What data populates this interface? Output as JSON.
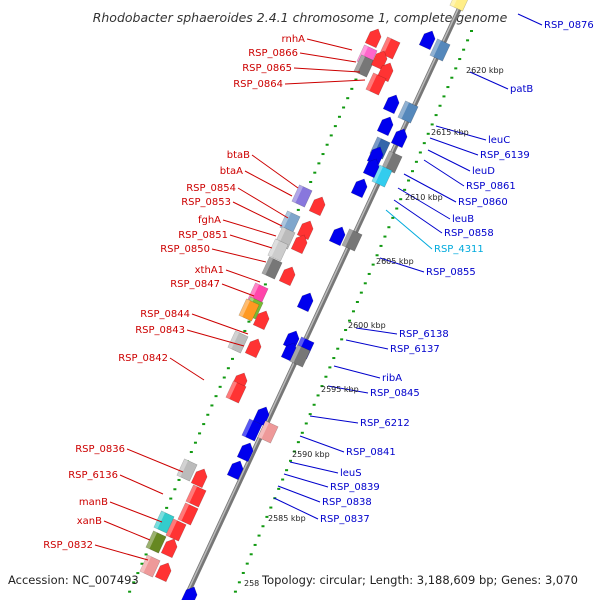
{
  "title": "Rhodobacter sphaeroides 2.4.1 chromosome 1, complete genome",
  "footer": {
    "accession": "Accession: NC_007493",
    "topology": "Topology: circular; Length: 3,188,609 bp; Genes: 3,070"
  },
  "colors": {
    "left_label": "#cc0000",
    "right_label": "#0000cc",
    "cyan_label": "#00aadd",
    "axis": "#888888",
    "dots": "#119911"
  },
  "kbp_ticks": [
    "2620 kbp",
    "2615 kbp",
    "2610 kbp",
    "2605 kbp",
    "2600 kbp",
    "2595 kbp",
    "2590 kbp",
    "2585 kbp",
    "258"
  ],
  "left_labels": [
    "rnhA",
    "RSP_0866",
    "RSP_0865",
    "RSP_0864",
    "btaB",
    "btaA",
    "RSP_0854",
    "RSP_0853",
    "fghA",
    "RSP_0851",
    "RSP_0850",
    "xthA1",
    "RSP_0847",
    "RSP_0844",
    "RSP_0843",
    "RSP_0842",
    "RSP_0836",
    "RSP_6136",
    "manB",
    "xanB",
    "RSP_0832"
  ],
  "right_labels": [
    "RSP_0876",
    "patB",
    "leuC",
    "RSP_6139",
    "leuD",
    "RSP_0861",
    "RSP_0860",
    "leuB",
    "RSP_0858",
    "RSP_4311",
    "RSP_0855",
    "RSP_6138",
    "RSP_6137",
    "ribA",
    "RSP_0845",
    "RSP_6212",
    "RSP_0841",
    "leuS",
    "RSP_0839",
    "RSP_0838",
    "RSP_0837"
  ]
}
